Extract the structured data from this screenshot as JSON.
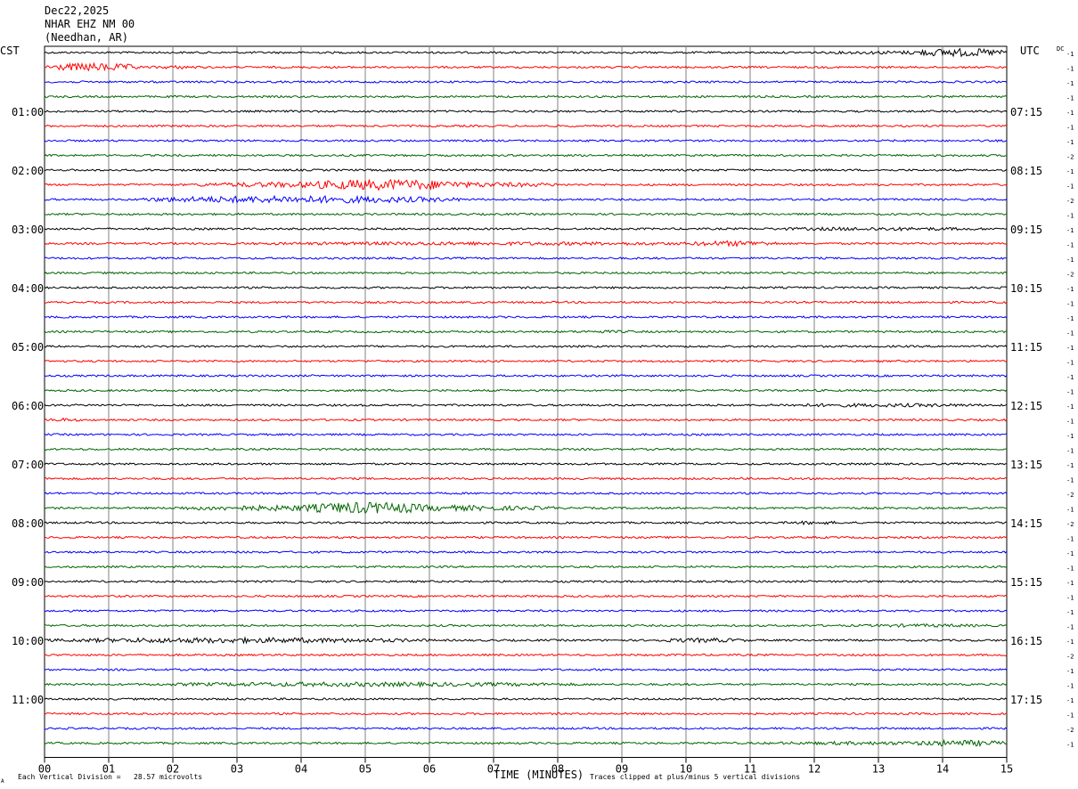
{
  "header": {
    "date": "Dec22,2025",
    "station": "NHAR EHZ NM 00",
    "location": "(Needhan, AR)"
  },
  "left_timezone": "CST",
  "right_timezone": "UTC",
  "dc_label": "DC",
  "footer": {
    "corner_mark": "A",
    "vertical_division": "Each Vertical Division =   28.57 microvolts",
    "xlabel": "TIME (MINUTES)",
    "clip_note": "Traces clipped at plus/minus 5 vertical divisions"
  },
  "colors": {
    "trace_cycle": [
      "#000000",
      "#ff0000",
      "#0000ff",
      "#006400"
    ],
    "grid": "#808080",
    "text": "#000000"
  },
  "chart_data": {
    "type": "line",
    "title": "",
    "xlabel": "TIME (MINUTES)",
    "ylabel": "",
    "xlim": [
      0,
      15
    ],
    "x_ticks": [
      "00",
      "01",
      "02",
      "03",
      "04",
      "05",
      "06",
      "07",
      "08",
      "09",
      "10",
      "11",
      "12",
      "13",
      "14",
      "15"
    ],
    "rows_per_hour": 4,
    "row_minutes": 15,
    "left_hour_labels": [
      "01:00",
      "02:00",
      "03:00",
      "04:00",
      "05:00",
      "06:00",
      "07:00",
      "08:00",
      "09:00",
      "10:00",
      "11:00"
    ],
    "right_hour_labels": [
      "07:15",
      "08:15",
      "09:15",
      "10:15",
      "11:15",
      "12:15",
      "13:15",
      "14:15",
      "15:15",
      "16:15",
      "17:15"
    ],
    "dc_offsets": [
      -1,
      -1,
      -1,
      -1,
      -1,
      -1,
      -1,
      -2,
      -1,
      -1,
      -2,
      -1,
      -1,
      -1,
      -1,
      -2,
      -1,
      -1,
      -1,
      -1,
      -1,
      -1,
      -1,
      -1,
      -1,
      -1,
      -1,
      -1,
      -1,
      -1,
      -2,
      -1,
      -2,
      -1,
      -1,
      -1,
      -1,
      -1,
      -1,
      -1,
      -1,
      -2,
      -1,
      -1,
      -1,
      -1,
      -2,
      -1
    ],
    "series": [
      {
        "bursts": [
          [
            12.0,
            15.0,
            2.0
          ],
          [
            13.5,
            15.0,
            4.5
          ]
        ]
      },
      {
        "bursts": [
          [
            0.0,
            1.5,
            4.5
          ],
          [
            1.6,
            2.5,
            2.0
          ]
        ]
      },
      {
        "bursts": []
      },
      {
        "bursts": []
      },
      {
        "bursts": []
      },
      {
        "bursts": []
      },
      {
        "bursts": []
      },
      {
        "bursts": []
      },
      {
        "bursts": []
      },
      {
        "bursts": [
          [
            2.3,
            8.0,
            3.5
          ],
          [
            4.0,
            6.6,
            6.0
          ]
        ]
      },
      {
        "bursts": [
          [
            1.5,
            6.5,
            4.0
          ]
        ]
      },
      {
        "bursts": []
      },
      {
        "bursts": [
          [
            11.0,
            15.0,
            2.0
          ]
        ]
      },
      {
        "bursts": [
          [
            2.5,
            11.5,
            2.0
          ],
          [
            10.0,
            11.5,
            3.0
          ]
        ]
      },
      {
        "bursts": []
      },
      {
        "bursts": []
      },
      {
        "bursts": []
      },
      {
        "bursts": []
      },
      {
        "bursts": []
      },
      {
        "bursts": [
          [
            8.0,
            9.5,
            1.6
          ]
        ]
      },
      {
        "bursts": []
      },
      {
        "bursts": []
      },
      {
        "bursts": []
      },
      {
        "bursts": []
      },
      {
        "bursts": [
          [
            11.0,
            15.0,
            2.0
          ]
        ]
      },
      {
        "bursts": [
          [
            0.0,
            0.6,
            2.0
          ]
        ]
      },
      {
        "bursts": []
      },
      {
        "bursts": []
      },
      {
        "bursts": []
      },
      {
        "bursts": []
      },
      {
        "bursts": []
      },
      {
        "bursts": [
          [
            2.0,
            8.0,
            3.5
          ],
          [
            4.0,
            6.0,
            6.5
          ]
        ]
      },
      {
        "bursts": [
          [
            11.5,
            12.5,
            2.0
          ]
        ]
      },
      {
        "bursts": []
      },
      {
        "bursts": []
      },
      {
        "bursts": []
      },
      {
        "bursts": []
      },
      {
        "bursts": []
      },
      {
        "bursts": []
      },
      {
        "bursts": [
          [
            12.5,
            15.0,
            1.8
          ]
        ]
      },
      {
        "bursts": [
          [
            0.0,
            6.0,
            3.0
          ],
          [
            9.5,
            11.0,
            2.5
          ]
        ]
      },
      {
        "bursts": []
      },
      {
        "bursts": []
      },
      {
        "bursts": [
          [
            1.5,
            8.5,
            2.5
          ]
        ]
      },
      {
        "bursts": []
      },
      {
        "bursts": []
      },
      {
        "bursts": []
      },
      {
        "bursts": [
          [
            11.0,
            15.0,
            2.0
          ],
          [
            13.5,
            15.0,
            3.5
          ]
        ]
      }
    ]
  }
}
